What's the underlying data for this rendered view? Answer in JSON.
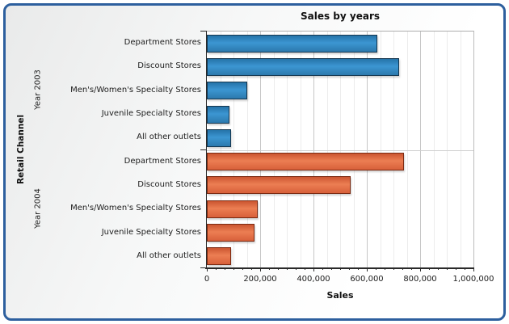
{
  "frame": {
    "border_color": "#2D5F9E",
    "background_tint": "#e9eaea"
  },
  "chart_data": {
    "type": "bar",
    "orientation": "horizontal",
    "title": "Sales by years",
    "xlabel": "Sales",
    "ylabel": "Retail Channel",
    "xlim": [
      0,
      1000000
    ],
    "x_major_interval": 200000,
    "x_minor_gridline_interval": 50000,
    "x_minor_ticks_per_major": 5,
    "x_tick_labels": [
      "0",
      "200,000",
      "400,000",
      "600,000",
      "800,000",
      "1,000,000"
    ],
    "grid": true,
    "legend": "none",
    "categories": [
      "Department Stores",
      "Discount Stores",
      "Men's/Women's Specialty Stores",
      "Juvenile Specialty Stores",
      "All other outlets"
    ],
    "series": [
      {
        "name": "Year 2003",
        "color": "#2E86C1",
        "fill_top": "#2573A8",
        "fill_mid": "#3C96D2",
        "fill_bottom": "#2C79AD",
        "border": "#16374F",
        "values": [
          640000,
          720000,
          150000,
          85000,
          92000
        ]
      },
      {
        "name": "Year 2004",
        "color": "#E06038",
        "fill_top": "#CB5530",
        "fill_mid": "#EC7E53",
        "fill_bottom": "#D8603A",
        "border": "#7B2A12",
        "values": [
          740000,
          540000,
          190000,
          180000,
          90000
        ]
      }
    ]
  }
}
